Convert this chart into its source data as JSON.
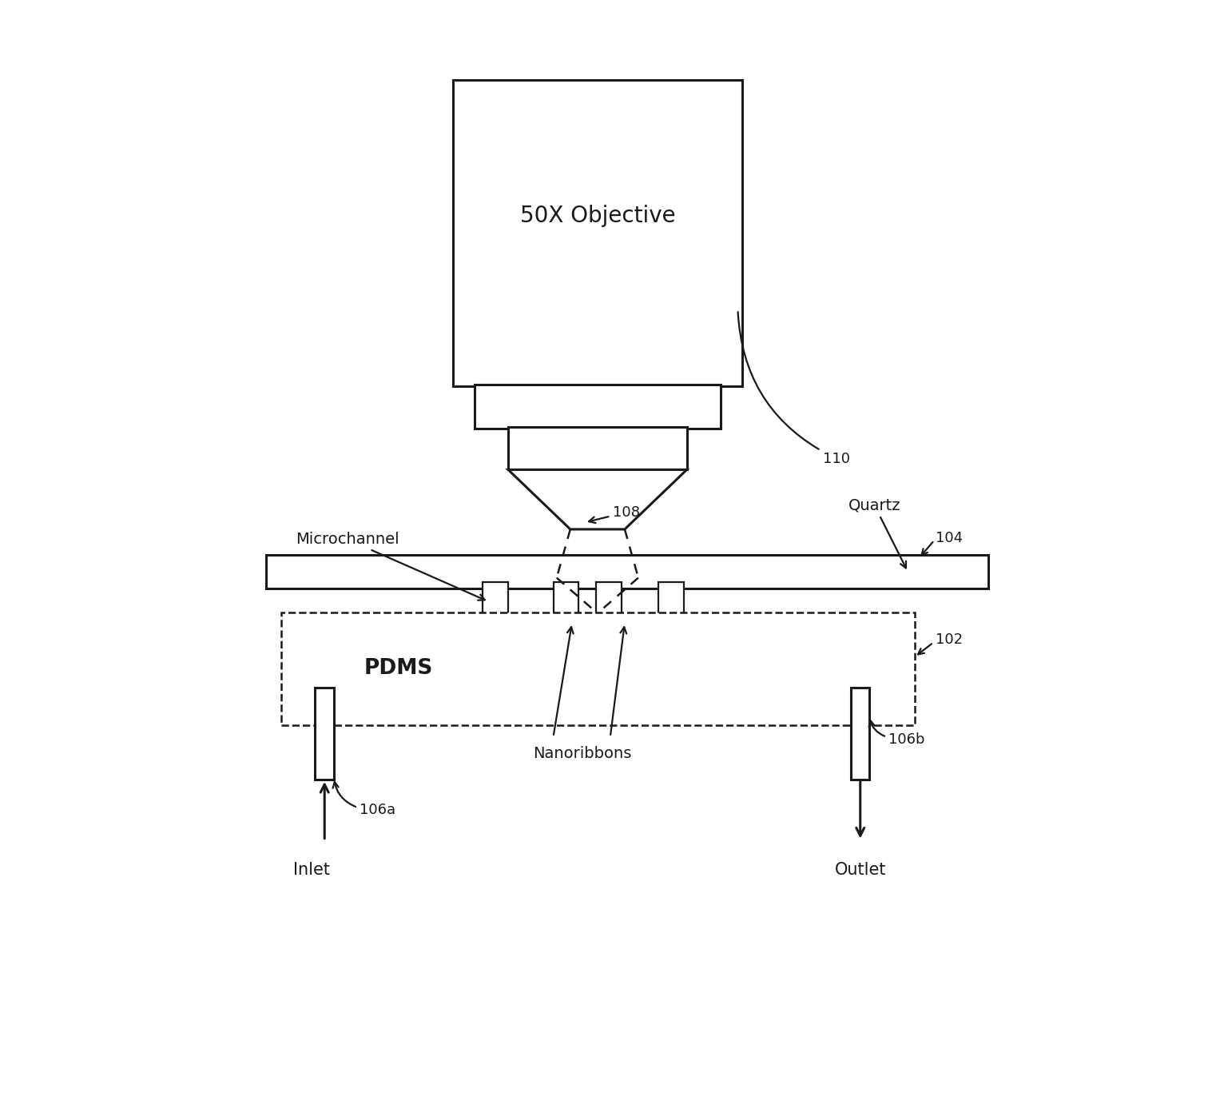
{
  "bg_color": "#ffffff",
  "line_color": "#1a1a1a",
  "font_color": "#1a1a1a",
  "font_family": "DejaVu Sans",
  "fig_width": 15.17,
  "fig_height": 13.92,
  "dpi": 100,
  "obj_text_line1": "50X Objective",
  "label_110": "110",
  "label_108": "108",
  "label_microchannel": "Microchannel",
  "label_quartz": "Quartz",
  "label_104": "104",
  "label_102": "102",
  "label_pdms": "PDMS",
  "label_nanoribbons": "Nanoribbons",
  "label_106a": "106a",
  "label_106b": "106b",
  "label_inlet": "Inlet",
  "label_outlet": "Outlet"
}
